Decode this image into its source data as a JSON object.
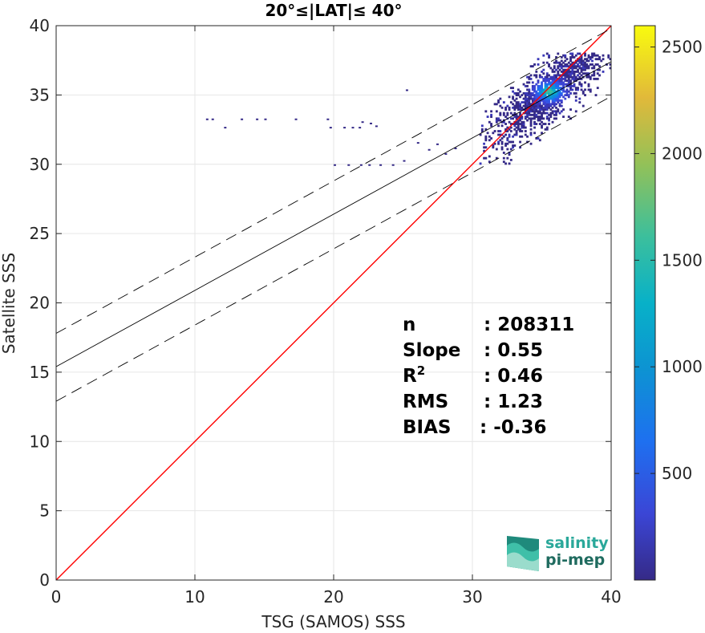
{
  "chart_data": {
    "type": "heatmap",
    "title": "20°≤|LAT|≤ 40°",
    "xlabel": "TSG (SAMOS) SSS",
    "ylabel": "Satellite SSS",
    "xlim": [
      0,
      40
    ],
    "ylim": [
      0,
      40
    ],
    "xticks": [
      0,
      10,
      20,
      30,
      40
    ],
    "yticks": [
      0,
      5,
      10,
      15,
      20,
      25,
      30,
      35,
      40
    ],
    "grid": true,
    "colorbar": {
      "colormap": "parula",
      "range": [
        0,
        2600
      ],
      "ticks": [
        500,
        1000,
        1500,
        2000,
        2500
      ]
    },
    "lines": {
      "identity": {
        "slope": 1,
        "intercept": 0,
        "color": "#ff0000"
      },
      "fit": {
        "slope": 0.55,
        "intercept": 15.4,
        "color": "#000000"
      },
      "fit_upper": {
        "slope": 0.55,
        "intercept": 17.8,
        "style": "dashed"
      },
      "fit_lower": {
        "slope": 0.55,
        "intercept": 12.9,
        "style": "dashed"
      }
    },
    "density": {
      "core_center": [
        35.5,
        35.2
      ],
      "x_range": [
        30.5,
        40
      ],
      "y_range": [
        30,
        38
      ],
      "peak_count": 2600
    },
    "outliers": [
      [
        10.8,
        33.3
      ],
      [
        11.2,
        33.3
      ],
      [
        12.1,
        32.7
      ],
      [
        13.3,
        33.3
      ],
      [
        14.4,
        33.3
      ],
      [
        15.0,
        33.3
      ],
      [
        17.2,
        33.3
      ],
      [
        19.5,
        33.3
      ],
      [
        19.7,
        32.7
      ],
      [
        20.7,
        32.7
      ],
      [
        21.3,
        32.7
      ],
      [
        21.8,
        32.7
      ],
      [
        22.0,
        33.1
      ],
      [
        22.6,
        33.0
      ],
      [
        23.0,
        32.8
      ],
      [
        20.0,
        30.0
      ],
      [
        21.0,
        30.0
      ],
      [
        21.9,
        30.0
      ],
      [
        22.5,
        30.0
      ],
      [
        23.3,
        30.0
      ],
      [
        24.2,
        30.0
      ],
      [
        25.0,
        30.3
      ],
      [
        25.2,
        35.4
      ],
      [
        26.0,
        31.6
      ],
      [
        26.8,
        31.1
      ],
      [
        27.4,
        31.5
      ],
      [
        28.0,
        30.8
      ],
      [
        28.7,
        31.2
      ]
    ]
  },
  "stats": [
    {
      "label": "n",
      "value": ": 208311"
    },
    {
      "label": "Slope",
      "value": ": 0.55"
    },
    {
      "label": "R",
      "sup": "2",
      "value": ": 0.46"
    },
    {
      "label": "RMS",
      "value": ": 1.23"
    },
    {
      "label": "BIAS",
      "value": ": -0.36"
    }
  ],
  "logo": {
    "line1": "salinity",
    "line2": "pi-mep",
    "color": "#2aa89a",
    "color2": "#1f6b5f"
  }
}
